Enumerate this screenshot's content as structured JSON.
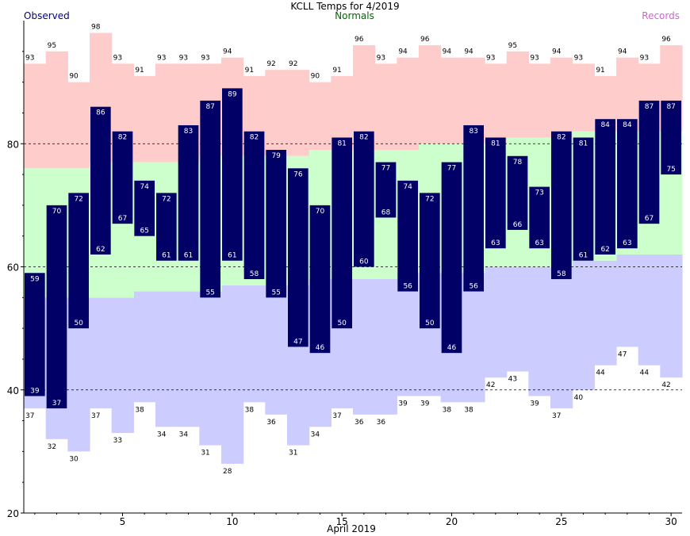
{
  "header": {
    "title": "KCLL Temps for 4/2019",
    "observed_label": "Observed",
    "normals_label": "Normals",
    "records_label": "Records"
  },
  "colors": {
    "record_high": "#ffcccc",
    "normal": "#ccffcc",
    "record_low": "#ccccff",
    "observed": "#000066",
    "observed_text": "#ffffff",
    "observed_label": "#000080",
    "normals_label": "#006600",
    "records_label": "#cc66cc"
  },
  "chart_data": {
    "type": "bar",
    "title": "KCLL Temps for 4/2019",
    "xlabel": "April 2019",
    "ylabel": "",
    "xlim": [
      0.5,
      30.5
    ],
    "ylim": [
      20,
      100
    ],
    "x_ticks": [
      5,
      10,
      15,
      20,
      25,
      30
    ],
    "y_ticks": [
      20,
      40,
      60,
      80
    ],
    "gridlines": [
      40,
      60,
      80
    ],
    "days": [
      1,
      2,
      3,
      4,
      5,
      6,
      7,
      8,
      9,
      10,
      11,
      12,
      13,
      14,
      15,
      16,
      17,
      18,
      19,
      20,
      21,
      22,
      23,
      24,
      25,
      26,
      27,
      28,
      29,
      30
    ],
    "record_high": [
      93,
      95,
      90,
      98,
      93,
      91,
      93,
      93,
      93,
      94,
      91,
      92,
      92,
      90,
      91,
      96,
      93,
      94,
      96,
      94,
      94,
      93,
      95,
      93,
      94,
      93,
      91,
      94,
      93,
      96
    ],
    "normal_high": [
      76,
      76,
      76,
      77,
      77,
      77,
      77,
      77,
      78,
      78,
      78,
      78,
      78,
      79,
      79,
      79,
      79,
      79,
      80,
      80,
      80,
      80,
      81,
      81,
      81,
      82,
      82,
      82,
      82,
      82
    ],
    "normal_low": [
      55,
      55,
      55,
      55,
      55,
      56,
      56,
      56,
      56,
      57,
      57,
      57,
      57,
      58,
      58,
      58,
      58,
      59,
      59,
      59,
      59,
      60,
      60,
      60,
      60,
      61,
      61,
      62,
      62,
      62
    ],
    "record_low": [
      37,
      32,
      30,
      37,
      33,
      38,
      34,
      34,
      31,
      28,
      38,
      36,
      31,
      34,
      37,
      36,
      36,
      39,
      39,
      38,
      38,
      42,
      43,
      39,
      37,
      40,
      44,
      47,
      44,
      42
    ],
    "observed_high": [
      59,
      70,
      72,
      86,
      82,
      74,
      72,
      83,
      87,
      89,
      82,
      79,
      76,
      70,
      81,
      82,
      77,
      74,
      72,
      77,
      83,
      81,
      78,
      73,
      82,
      81,
      84,
      84,
      87,
      87
    ],
    "observed_low": [
      39,
      37,
      50,
      62,
      67,
      65,
      61,
      61,
      55,
      61,
      58,
      55,
      47,
      46,
      50,
      60,
      68,
      56,
      50,
      46,
      56,
      63,
      66,
      63,
      58,
      61,
      62,
      63,
      67,
      75
    ]
  }
}
